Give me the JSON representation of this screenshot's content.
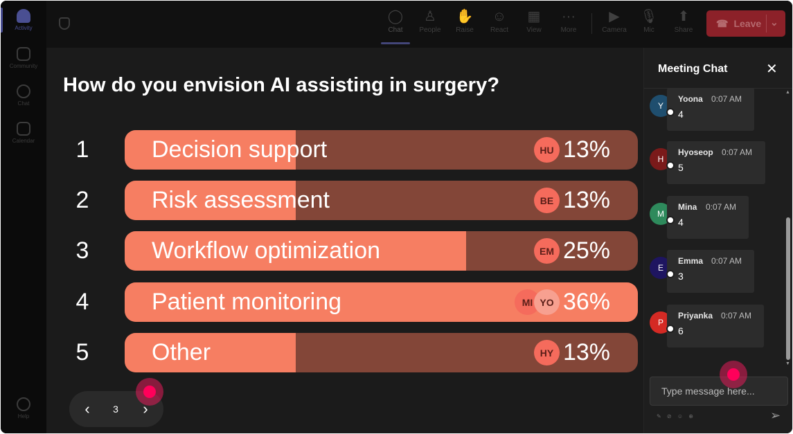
{
  "rail": {
    "items": [
      {
        "label": "Activity",
        "active": true
      },
      {
        "label": "Community",
        "active": false
      },
      {
        "label": "Chat",
        "active": false
      },
      {
        "label": "Calendar",
        "active": false
      }
    ],
    "help_label": "Help"
  },
  "toolbar": {
    "buttons": [
      {
        "label": "Chat",
        "icon": "chat-icon",
        "glyph": "◯"
      },
      {
        "label": "People",
        "icon": "people-icon",
        "glyph": "♙"
      },
      {
        "label": "Raise",
        "icon": "raise-hand-icon",
        "glyph": "✋"
      },
      {
        "label": "React",
        "icon": "react-icon",
        "glyph": "☺"
      },
      {
        "label": "View",
        "icon": "view-icon",
        "glyph": "▦"
      },
      {
        "label": "More",
        "icon": "more-icon",
        "glyph": "···"
      },
      {
        "label": "Camera",
        "icon": "camera-icon",
        "glyph": "▶"
      },
      {
        "label": "Mic",
        "icon": "mic-icon",
        "glyph": "🎙"
      },
      {
        "label": "Share",
        "icon": "share-icon",
        "glyph": "⬆"
      }
    ],
    "leave_label": "Leave"
  },
  "poll": {
    "question": "How do you envision AI assisting in surgery?",
    "options": [
      {
        "num": "1",
        "label": "Decision support",
        "percent": "13%",
        "fraction": 0.333,
        "voters": [
          "HU"
        ]
      },
      {
        "num": "2",
        "label": "Risk assessment",
        "percent": "13%",
        "fraction": 0.333,
        "voters": [
          "BE"
        ]
      },
      {
        "num": "3",
        "label": "Workflow optimization",
        "percent": "25%",
        "fraction": 0.665,
        "voters": [
          "EM"
        ]
      },
      {
        "num": "4",
        "label": "Patient monitoring",
        "percent": "36%",
        "fraction": 1.0,
        "voters": [
          "MI",
          "YO"
        ]
      },
      {
        "num": "5",
        "label": "Other",
        "percent": "13%",
        "fraction": 0.333,
        "voters": [
          "HY"
        ]
      }
    ],
    "colors": {
      "fill": "#f67e62",
      "track": "#834638",
      "avatar": "#f56b5c"
    },
    "page": "3"
  },
  "chat": {
    "title": "Meeting Chat",
    "messages": [
      {
        "initial": "Y",
        "name": "Yoona",
        "time": "0:07 AM",
        "text": "4",
        "color": "#1f4e6e"
      },
      {
        "initial": "H",
        "name": "Hyoseop",
        "time": "0:07 AM",
        "text": "5",
        "color": "#7a1a1a"
      },
      {
        "initial": "M",
        "name": "Mina",
        "time": "0:07 AM",
        "text": "4",
        "color": "#2e8a5c"
      },
      {
        "initial": "E",
        "name": "Emma",
        "time": "0:07 AM",
        "text": "3",
        "color": "#1e1560"
      },
      {
        "initial": "P",
        "name": "Priyanka",
        "time": "0:07 AM",
        "text": "6",
        "color": "#d42a24"
      }
    ],
    "input_placeholder": "Type message here..."
  }
}
